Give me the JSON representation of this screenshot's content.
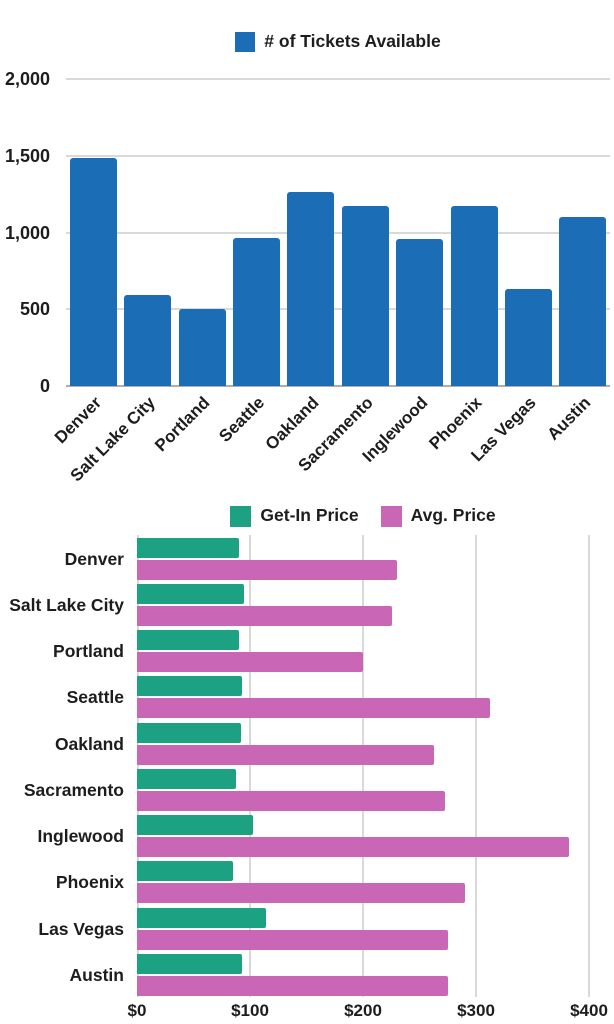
{
  "colors": {
    "tickets_bar": "#1b6eb5",
    "get_in_bar": "#1ca183",
    "avg_bar": "#c966b5",
    "text": "#1d1d1d",
    "gridline": "#d9d9d9",
    "axis_baseline": "#aeaeae",
    "background": "#ffffff"
  },
  "chart_data": [
    {
      "id": "tickets",
      "type": "bar",
      "title": "",
      "legend": [
        {
          "label": "# of Tickets Available",
          "color": "#1b6eb5"
        }
      ],
      "legend_position": "top",
      "grid": true,
      "x_label_rotation": -45,
      "categories": [
        "Denver",
        "Salt Lake City",
        "Portland",
        "Seattle",
        "Oakland",
        "Sacramento",
        "Inglewood",
        "Phoenix",
        "Las Vegas",
        "Austin"
      ],
      "values": [
        1485,
        590,
        500,
        965,
        1265,
        1170,
        960,
        1170,
        630,
        1100
      ],
      "xlabel": "",
      "ylabel": "",
      "ylim": [
        0,
        2000
      ],
      "yticks": [
        {
          "value": 0,
          "label": "0"
        },
        {
          "value": 500,
          "label": "500"
        },
        {
          "value": 1000,
          "label": "1,000"
        },
        {
          "value": 1500,
          "label": "1,500"
        },
        {
          "value": 2000,
          "label": "2,000"
        }
      ]
    },
    {
      "id": "prices",
      "type": "bar-horizontal",
      "title": "",
      "legend_position": "top",
      "grid": true,
      "categories": [
        "Denver",
        "Salt Lake City",
        "Portland",
        "Seattle",
        "Oakland",
        "Sacramento",
        "Inglewood",
        "Phoenix",
        "Las Vegas",
        "Austin"
      ],
      "series": [
        {
          "name": "Get-In Price",
          "color": "#1ca183",
          "values": [
            90,
            95,
            90,
            93,
            92,
            88,
            103,
            85,
            114,
            93
          ]
        },
        {
          "name": "Avg. Price",
          "color": "#c966b5",
          "values": [
            230,
            226,
            200,
            312,
            263,
            273,
            382,
            290,
            275,
            275
          ]
        }
      ],
      "xlabel": "",
      "ylabel": "",
      "xlim": [
        0,
        400
      ],
      "xticks": [
        {
          "value": 0,
          "label": "$0"
        },
        {
          "value": 100,
          "label": "$100"
        },
        {
          "value": 200,
          "label": "$200"
        },
        {
          "value": 300,
          "label": "$300"
        },
        {
          "value": 400,
          "label": "$400"
        }
      ]
    }
  ]
}
